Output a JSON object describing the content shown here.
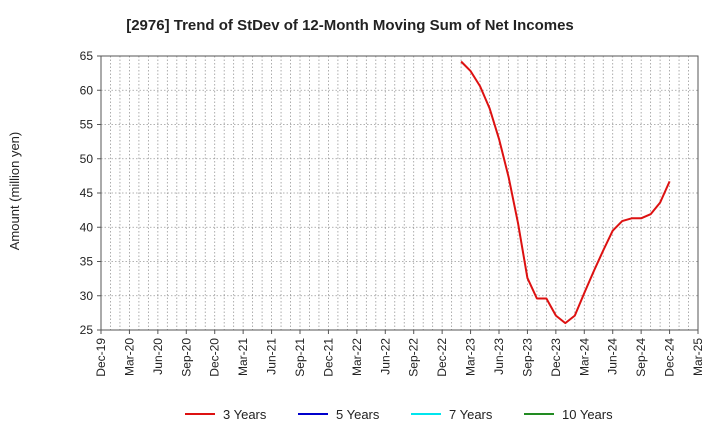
{
  "chart_data": {
    "type": "line",
    "title": "[2976]  Trend of StDev of 12-Month Moving Sum of Net Incomes",
    "xlabel": "",
    "ylabel": "Amount (million yen)",
    "ylim": [
      25,
      65
    ],
    "yticks": [
      25,
      30,
      35,
      40,
      45,
      50,
      55,
      60,
      65
    ],
    "x_ticks": [
      "Dec-19",
      "Mar-20",
      "Jun-20",
      "Sep-20",
      "Dec-20",
      "Mar-21",
      "Jun-21",
      "Sep-21",
      "Dec-21",
      "Mar-22",
      "Jun-22",
      "Sep-22",
      "Dec-22",
      "Mar-23",
      "Jun-23",
      "Sep-23",
      "Dec-23",
      "Mar-24",
      "Jun-24",
      "Sep-24",
      "Dec-24",
      "Mar-25"
    ],
    "grid": true,
    "legend_position": "bottom",
    "series": [
      {
        "name": "3 Years",
        "color": "#dd1111",
        "x": [
          "Feb-23",
          "Mar-23",
          "Apr-23",
          "May-23",
          "Jun-23",
          "Jul-23",
          "Aug-23",
          "Sep-23",
          "Oct-23",
          "Nov-23",
          "Dec-23",
          "Jan-24",
          "Feb-24",
          "Mar-24",
          "Apr-24",
          "May-24",
          "Jun-24",
          "Jul-24",
          "Aug-24",
          "Sep-24",
          "Oct-24",
          "Nov-24",
          "Dec-24"
        ],
        "values": [
          64.2,
          62.8,
          60.6,
          57.4,
          52.9,
          47.4,
          40.6,
          32.6,
          29.6,
          29.6,
          27.1,
          26.0,
          27.1,
          30.4,
          33.6,
          36.6,
          39.5,
          40.9,
          41.3,
          41.3,
          41.9,
          43.6,
          46.7
        ]
      },
      {
        "name": "5 Years",
        "color": "#0000cc",
        "x": [],
        "values": []
      },
      {
        "name": "7 Years",
        "color": "#00e5ee",
        "x": [],
        "values": []
      },
      {
        "name": "10 Years",
        "color": "#228b22",
        "x": [],
        "values": []
      }
    ]
  }
}
